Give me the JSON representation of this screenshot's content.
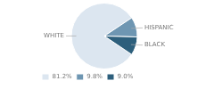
{
  "chart_data": {
    "type": "pie",
    "categories": [
      "81.2%",
      "9.8%",
      "9.0%"
    ],
    "values": [
      81.2,
      9.8,
      9.0
    ],
    "colors": [
      "#dce6f0",
      "#6e96b2",
      "#2d5f7c"
    ],
    "annotations": [
      "WHITE",
      "HISPANIC",
      "BLACK"
    ],
    "legend": "bottom left"
  }
}
